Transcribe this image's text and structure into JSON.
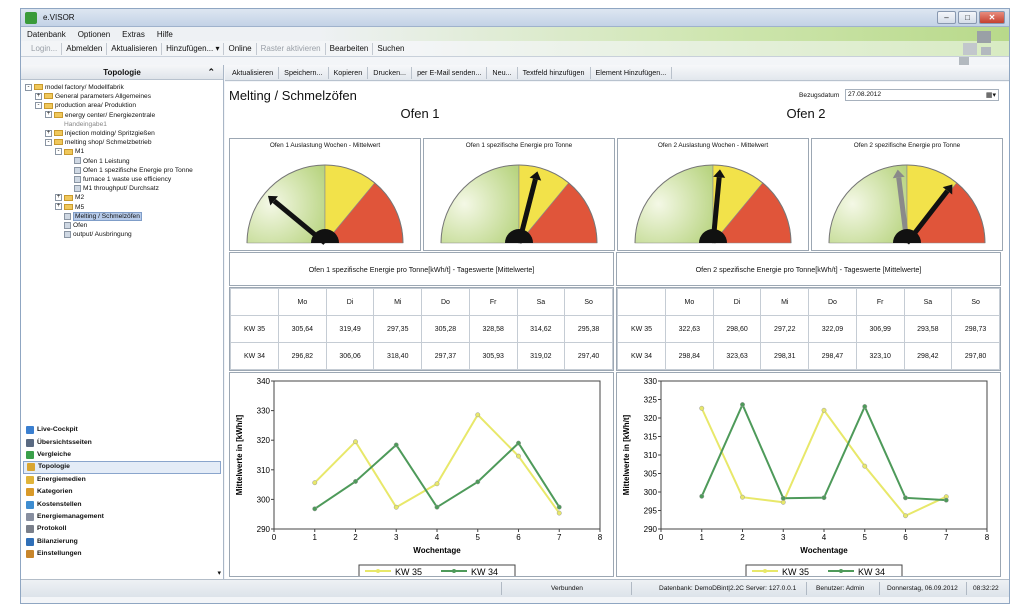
{
  "window": {
    "title": "e.VISOR"
  },
  "menu": [
    "Datenbank",
    "Optionen",
    "Extras",
    "Hilfe"
  ],
  "toolbar1": [
    {
      "label": "Login...",
      "disabled": true
    },
    {
      "label": "Abmelden",
      "disabled": false
    },
    {
      "label": "Aktualisieren",
      "disabled": false
    },
    {
      "label": "Hinzufügen... ▾",
      "disabled": false
    },
    {
      "label": "Online",
      "disabled": false
    },
    {
      "label": "Raster aktivieren",
      "disabled": true
    },
    {
      "label": "Bearbeiten",
      "disabled": false
    },
    {
      "label": "Suchen",
      "disabled": false
    }
  ],
  "left_panel": {
    "title": "Topologie",
    "tree": [
      {
        "label": "model factory/ Modellfabrik",
        "level": 0,
        "pm": "-",
        "icon": "folder"
      },
      {
        "label": "General parameters Allgemeines",
        "level": 1,
        "pm": "+",
        "icon": "folder"
      },
      {
        "label": "production area/ Produktion",
        "level": 1,
        "pm": "-",
        "icon": "folder"
      },
      {
        "label": "energy center/ Energiezentrale",
        "level": 2,
        "pm": "+",
        "icon": "folder"
      },
      {
        "label": "Handeingabe1",
        "level": 3,
        "pm": "",
        "icon": "none",
        "gray": true
      },
      {
        "label": "injection molding/ Spritzgießen",
        "level": 2,
        "pm": "+",
        "icon": "folder"
      },
      {
        "label": "melting shop/ Schmelzbetrieb",
        "level": 2,
        "pm": "-",
        "icon": "folder"
      },
      {
        "label": "M1",
        "level": 3,
        "pm": "-",
        "icon": "folder"
      },
      {
        "label": "Ofen 1 Leistung",
        "level": 4,
        "pm": "",
        "icon": "doc"
      },
      {
        "label": "Ofen 1 spezifische Energie pro Tonne",
        "level": 4,
        "pm": "",
        "icon": "doc"
      },
      {
        "label": "furnace 1 waste use efficiency",
        "level": 4,
        "pm": "",
        "icon": "doc"
      },
      {
        "label": "M1 throughput/ Durchsatz",
        "level": 4,
        "pm": "",
        "icon": "doc"
      },
      {
        "label": "M2",
        "level": 3,
        "pm": "+",
        "icon": "folder"
      },
      {
        "label": "M5",
        "level": 3,
        "pm": "+",
        "icon": "folder"
      },
      {
        "label": "Melting / Schmelzöfen",
        "level": 3,
        "pm": "",
        "icon": "doc",
        "selected": true
      },
      {
        "label": "Ofen",
        "level": 3,
        "pm": "",
        "icon": "doc"
      },
      {
        "label": "output/ Ausbringung",
        "level": 3,
        "pm": "",
        "icon": "doc"
      }
    ],
    "nav": [
      {
        "label": "Live-Cockpit",
        "color": "#3a7fd0"
      },
      {
        "label": "Übersichtsseiten",
        "color": "#5a6a82"
      },
      {
        "label": "Vergleiche",
        "color": "#3aa04a"
      },
      {
        "label": "Topologie",
        "color": "#d9a531",
        "selected": true
      },
      {
        "label": "Energiemedien",
        "color": "#e0b43a"
      },
      {
        "label": "Kategorien",
        "color": "#d99a2a"
      },
      {
        "label": "Kostenstellen",
        "color": "#3e8dd1"
      },
      {
        "label": "Energiemanagement",
        "color": "#888fa0"
      },
      {
        "label": "Protokoll",
        "color": "#7a7f8a"
      },
      {
        "label": "Bilanzierung",
        "color": "#2f6fb8"
      },
      {
        "label": "Einstellungen",
        "color": "#c8862c"
      }
    ]
  },
  "action_bar": [
    "Aktualisieren",
    "Speichern...",
    "Kopieren",
    "Drucken...",
    "per E-Mail senden...",
    "Neu...",
    "Textfeld hinzufügen",
    "Element Hinzufügen..."
  ],
  "page": {
    "title": "Melting / Schmelzöfen",
    "ref_date_label": "Bezugsdatum",
    "ref_date": "27.08.2012",
    "ofen1": "Ofen 1",
    "ofen2": "Ofen 2"
  },
  "gauges": [
    {
      "title": "Ofen 1 Auslastung Wochen - Mittelwert",
      "needles": [
        0.22
      ]
    },
    {
      "title": "Ofen 1 spezifische Energie pro Tonne",
      "needles": [
        0.58
      ]
    },
    {
      "title": "Ofen 2 Auslastung Wochen - Mittelwert",
      "needles": [
        0.53
      ]
    },
    {
      "title": "Ofen 2 spezifische Energie pro Tonne",
      "needles": [
        0.46,
        0.71
      ]
    }
  ],
  "tables": [
    {
      "title": "Ofen 1 spezifische Energie pro Tonne[kWh/t] - Tageswerte [Mittelwerte]",
      "days": [
        "Mo",
        "Di",
        "Mi",
        "Do",
        "Fr",
        "Sa",
        "So"
      ],
      "rows": [
        {
          "label": "KW 35",
          "values": [
            "305,64",
            "319,49",
            "297,35",
            "305,28",
            "328,58",
            "314,62",
            "295,38"
          ]
        },
        {
          "label": "KW 34",
          "values": [
            "296,82",
            "306,06",
            "318,40",
            "297,37",
            "305,93",
            "319,02",
            "297,40"
          ]
        }
      ]
    },
    {
      "title": "Ofen 2 spezifische Energie pro Tonne[kWh/t] - Tageswerte [Mittelwerte]",
      "days": [
        "Mo",
        "Di",
        "Mi",
        "Do",
        "Fr",
        "Sa",
        "So"
      ],
      "rows": [
        {
          "label": "KW 35",
          "values": [
            "322,63",
            "298,60",
            "297,22",
            "322,09",
            "306,99",
            "293,58",
            "298,73"
          ]
        },
        {
          "label": "KW 34",
          "values": [
            "298,84",
            "323,63",
            "298,31",
            "298,47",
            "323,10",
            "298,42",
            "297,80"
          ]
        }
      ]
    }
  ],
  "chart_data": [
    {
      "type": "line",
      "xlabel": "Wochentage",
      "ylabel": "Mittelwerte in [kWh/t]",
      "xlim": [
        0,
        8
      ],
      "ylim": [
        290,
        340
      ],
      "xticks": [
        0,
        1,
        2,
        3,
        4,
        5,
        6,
        7,
        8
      ],
      "yticks": [
        290,
        300,
        310,
        320,
        330,
        340
      ],
      "x": [
        1,
        2,
        3,
        4,
        5,
        6,
        7
      ],
      "legend": "bottom",
      "series": [
        {
          "name": "KW 35",
          "color": "#e8e86a",
          "values": [
            305.64,
            319.49,
            297.35,
            305.28,
            328.58,
            314.62,
            295.38
          ]
        },
        {
          "name": "KW 34",
          "color": "#4e9a5a",
          "values": [
            296.82,
            306.06,
            318.4,
            297.37,
            305.93,
            319.02,
            297.4
          ]
        }
      ]
    },
    {
      "type": "line",
      "xlabel": "Wochentage",
      "ylabel": "Mittelwerte in [kWh/t]",
      "xlim": [
        0,
        8
      ],
      "ylim": [
        290,
        330
      ],
      "xticks": [
        0,
        1,
        2,
        3,
        4,
        5,
        6,
        7,
        8
      ],
      "yticks": [
        290,
        295,
        300,
        305,
        310,
        315,
        320,
        325,
        330
      ],
      "x": [
        1,
        2,
        3,
        4,
        5,
        6,
        7
      ],
      "legend": "bottom",
      "series": [
        {
          "name": "KW 35",
          "color": "#e8e86a",
          "values": [
            322.63,
            298.6,
            297.22,
            322.09,
            306.99,
            293.58,
            298.73
          ]
        },
        {
          "name": "KW 34",
          "color": "#4e9a5a",
          "values": [
            298.84,
            323.63,
            298.31,
            298.47,
            323.1,
            298.42,
            297.8
          ]
        }
      ]
    }
  ],
  "status": {
    "connection": "Verbunden",
    "database": "Datenbank: DemoDBint|2.2C Server: 127.0.0.1",
    "user": "Benutzer: Admin",
    "date": "Donnerstag, 06.09.2012",
    "time": "08:32:22"
  }
}
